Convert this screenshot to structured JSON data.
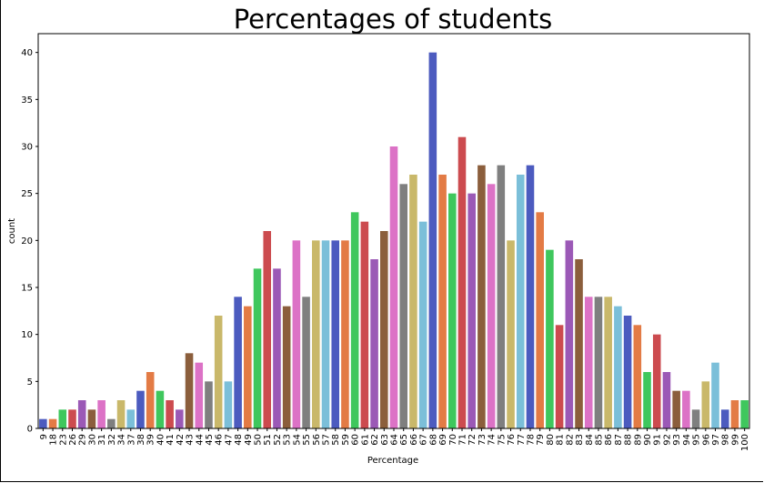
{
  "chart_data": {
    "type": "bar",
    "title": "Percentages of students",
    "xlabel": "Percentage",
    "ylabel": "count",
    "ylim": [
      0,
      42
    ],
    "yticks": [
      0,
      5,
      10,
      15,
      20,
      25,
      30,
      35,
      40
    ],
    "categories": [
      "9",
      "18",
      "23",
      "26",
      "29",
      "30",
      "31",
      "32",
      "34",
      "37",
      "38",
      "39",
      "40",
      "41",
      "42",
      "43",
      "44",
      "45",
      "46",
      "47",
      "48",
      "49",
      "50",
      "51",
      "52",
      "53",
      "54",
      "55",
      "56",
      "57",
      "58",
      "59",
      "60",
      "61",
      "62",
      "63",
      "64",
      "65",
      "66",
      "67",
      "68",
      "69",
      "70",
      "71",
      "72",
      "73",
      "74",
      "75",
      "76",
      "77",
      "78",
      "79",
      "80",
      "81",
      "82",
      "83",
      "84",
      "85",
      "86",
      "87",
      "88",
      "89",
      "90",
      "91",
      "92",
      "93",
      "94",
      "95",
      "96",
      "97",
      "98",
      "99",
      "100"
    ],
    "values": [
      1,
      1,
      2,
      2,
      3,
      2,
      3,
      1,
      3,
      2,
      4,
      6,
      4,
      3,
      2,
      8,
      7,
      5,
      12,
      5,
      14,
      13,
      17,
      21,
      17,
      13,
      20,
      14,
      20,
      20,
      20,
      20,
      23,
      22,
      18,
      21,
      30,
      26,
      27,
      22,
      40,
      27,
      25,
      31,
      25,
      28,
      26,
      28,
      20,
      27,
      28,
      23,
      19,
      11,
      20,
      18,
      14,
      14,
      14,
      13,
      12,
      11,
      6,
      10,
      6,
      4,
      4,
      2,
      5,
      7,
      2,
      3,
      3
    ],
    "palette": [
      "#4c5bbf",
      "#e37b45",
      "#3fc75d",
      "#cc4b4f",
      "#9b59b6",
      "#8b5e3c",
      "#dc72c6",
      "#7f7f7f",
      "#c9b86a",
      "#7bbfd9"
    ],
    "grid": false,
    "legend": "none"
  }
}
